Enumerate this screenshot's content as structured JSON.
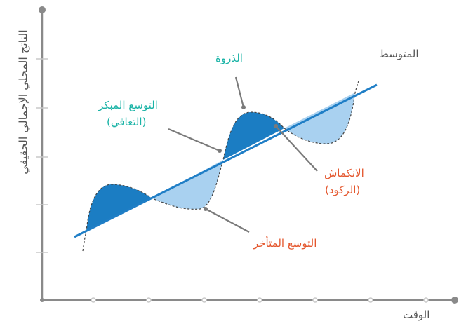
{
  "axes": {
    "y_label": "الناتج المحلي الإجمالي الحقيقي",
    "x_label": "الوقت"
  },
  "labels": {
    "trend": "المتوسط",
    "peak": "الذروة",
    "early_expansion_line1": "التوسع المبكر",
    "early_expansion_line2": "(التعافي)",
    "contraction_line1": "الانكماش",
    "contraction_line2": "(الركود)",
    "late_expansion": "التوسع المتأخر"
  },
  "colors": {
    "above_trend_fill": "#1b7dc3",
    "below_trend_fill": "#a9d1f0",
    "trend_line": "#1f7ec6",
    "axis": "#8a8a8a",
    "label_teal": "#19b3a6",
    "label_orange": "#e4572e",
    "label_gray": "#555555"
  }
}
